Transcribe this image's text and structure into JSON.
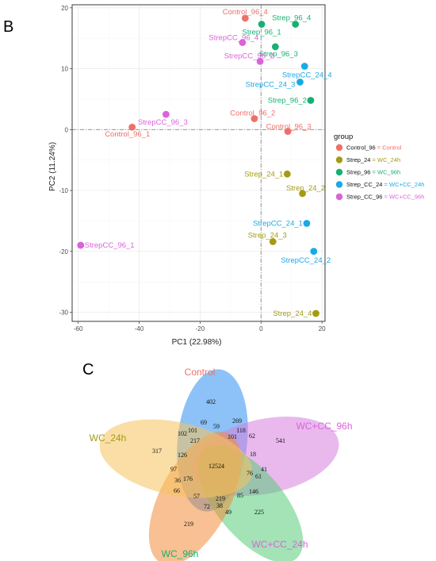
{
  "panels": {
    "pca_letter": "B",
    "venn_letter": "C"
  },
  "chart_data": [
    {
      "type": "scatter",
      "title": "",
      "xlabel": "PC1 (22.98%)",
      "ylabel": "PC2 (11.24%)",
      "xlim": [
        -62,
        21
      ],
      "ylim": [
        -31.5,
        20.5
      ],
      "xticks": [
        -60,
        -40,
        -20,
        0,
        20
      ],
      "yticks": [
        -30,
        -20,
        -10,
        0,
        10,
        20
      ],
      "grid": true,
      "reference_lines": {
        "x": 0,
        "y": 0,
        "style": "dashed"
      },
      "legend": {
        "title": "group",
        "position": "right",
        "entries": [
          {
            "key": "Control_96",
            "sep": " = ",
            "value": "Control",
            "color": "#ee6f6a"
          },
          {
            "key": "Strep_24",
            "sep": " = ",
            "value": "WC_24h",
            "color": "#a39c12"
          },
          {
            "key": "Strep_96",
            "sep": " = ",
            "value": "WC_96h",
            "color": "#17b072"
          },
          {
            "key": "Strep_CC_24",
            "sep": " = ",
            "value": "WC+CC_24h",
            "color": "#1aa9e6"
          },
          {
            "key": "Strep_CC_96",
            "sep": " = ",
            "value": "WC+CC_96h",
            "color": "#dc62dc"
          }
        ]
      },
      "points": [
        {
          "label": "Control_96_4",
          "x": -5.2,
          "y": 18.3,
          "group": "Control_96"
        },
        {
          "label": "Control_96_2",
          "x": -2.2,
          "y": 1.8,
          "group": "Control_96"
        },
        {
          "label": "Control_96_3",
          "x": 8.8,
          "y": -0.3,
          "group": "Control_96"
        },
        {
          "label": "Control_96_1",
          "x": -42.3,
          "y": 0.4,
          "group": "Control_96"
        },
        {
          "label": "Strep_96_4",
          "x": 11.3,
          "y": 17.3,
          "group": "Strep_96"
        },
        {
          "label": "Strep_96_1",
          "x": 0.2,
          "y": 17.3,
          "group": "Strep_96"
        },
        {
          "label": "Strep_96_3",
          "x": 4.7,
          "y": 13.6,
          "group": "Strep_96"
        },
        {
          "label": "Strep_96_2",
          "x": 16.3,
          "y": 4.8,
          "group": "Strep_96"
        },
        {
          "label": "StrepCC_96_4",
          "x": -6.1,
          "y": 14.3,
          "group": "Strep_CC_96"
        },
        {
          "label": "StrepCC_96_2",
          "x": -0.3,
          "y": 11.2,
          "group": "Strep_CC_96"
        },
        {
          "label": "StrepCC_96_3",
          "x": -31.2,
          "y": 2.5,
          "group": "Strep_CC_96"
        },
        {
          "label": "StrepCC_96_1",
          "x": -59.2,
          "y": -19.0,
          "group": "Strep_CC_96"
        },
        {
          "label": "StrepCC_24_4",
          "x": 14.3,
          "y": 10.4,
          "group": "Strep_CC_24"
        },
        {
          "label": "StrepCC_24_3",
          "x": 12.8,
          "y": 7.8,
          "group": "Strep_CC_24"
        },
        {
          "label": "StrepCC_24_1",
          "x": 15.0,
          "y": -15.4,
          "group": "Strep_CC_24"
        },
        {
          "label": "StrepCC_24_2",
          "x": 17.3,
          "y": -20.0,
          "group": "Strep_CC_24"
        },
        {
          "label": "Strep_24_1",
          "x": 8.6,
          "y": -7.3,
          "group": "Strep_24"
        },
        {
          "label": "Strep_24_2",
          "x": 13.6,
          "y": -10.5,
          "group": "Strep_24"
        },
        {
          "label": "Strep_24_3",
          "x": 3.9,
          "y": -18.4,
          "group": "Strep_24"
        },
        {
          "label": "Strep_24_4",
          "x": 18.0,
          "y": -30.2,
          "group": "Strep_24"
        }
      ]
    },
    {
      "type": "venn",
      "sets": [
        {
          "name": "Control",
          "color": "#ee6f6a",
          "fill": "#2e8ff0",
          "only": 402
        },
        {
          "name": "WC+CC_96h",
          "color": "#dc62dc",
          "fill": "#d77fe0",
          "only": 541
        },
        {
          "name": "WC+CC_24h",
          "color": "#dc62dc",
          "fill": "#58cc7a",
          "only": 225
        },
        {
          "name": "WC_96h",
          "color": "#17b072",
          "fill": "#f28d3a",
          "only": 219
        },
        {
          "name": "WC_24h",
          "color": "#a39c12",
          "fill": "#f7c25c",
          "only": 317
        }
      ],
      "counts": [
        "402",
        "541",
        "225",
        "219",
        "317",
        "269",
        "118",
        "69",
        "59",
        "101",
        "102",
        "217",
        "101",
        "62",
        "18",
        "12524",
        "126",
        "97",
        "176",
        "36",
        "66",
        "57",
        "72",
        "38",
        "49",
        "219",
        "85",
        "146",
        "76",
        "61",
        "41"
      ]
    }
  ]
}
